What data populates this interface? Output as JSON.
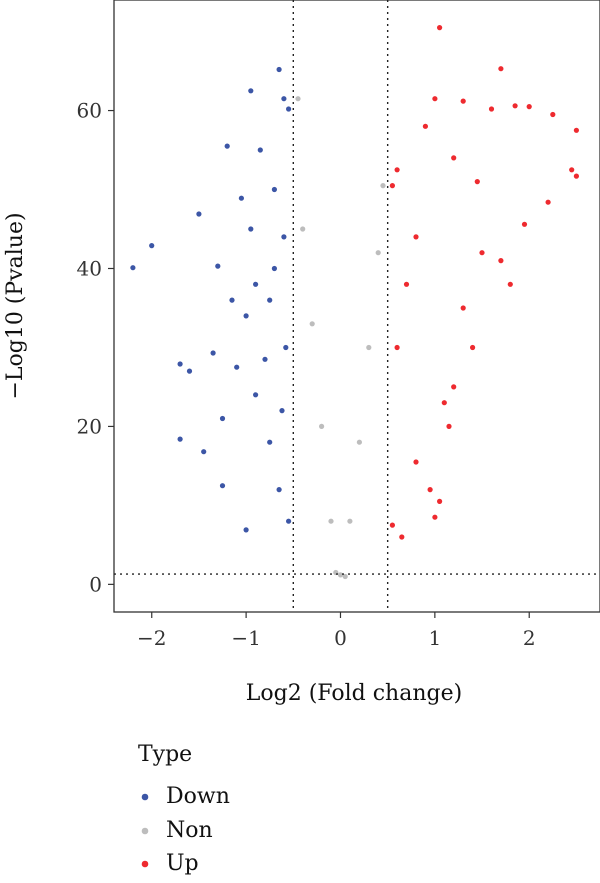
{
  "chart_data": {
    "type": "scatter",
    "xlabel": "Log2 (Fold change)",
    "ylabel": "−Log10 (Pvalue)",
    "xlim": [
      -2.4,
      2.75
    ],
    "ylim": [
      -3.5,
      74
    ],
    "xticks": [
      -2,
      -1,
      0,
      1,
      2
    ],
    "xtick_labels": [
      "−2",
      "−1",
      "0",
      "1",
      "2"
    ],
    "yticks": [
      0,
      20,
      40,
      60
    ],
    "ytick_labels": [
      "0",
      "20",
      "40",
      "60"
    ],
    "grid": false,
    "thresholds": {
      "log2fc": [
        -0.5,
        0.5
      ],
      "neglog10p": 1.3
    },
    "legend": {
      "title": "Type",
      "position": "bottom-left",
      "items": [
        {
          "label": "Down",
          "color": "#3C56A6"
        },
        {
          "label": "Non",
          "color": "#BDBDBD"
        },
        {
          "label": "Up",
          "color": "#EE2A2F"
        }
      ]
    },
    "series": [
      {
        "name": "Down",
        "color": "#3C56A6",
        "points": [
          [
            -2.2,
            40.1
          ],
          [
            -2.0,
            42.9
          ],
          [
            -1.7,
            27.9
          ],
          [
            -1.7,
            18.4
          ],
          [
            -1.6,
            27.0
          ],
          [
            -1.5,
            46.9
          ],
          [
            -1.45,
            16.8
          ],
          [
            -1.35,
            29.3
          ],
          [
            -1.3,
            40.3
          ],
          [
            -1.25,
            21.0
          ],
          [
            -1.25,
            12.5
          ],
          [
            -1.2,
            55.5
          ],
          [
            -1.1,
            27.5
          ],
          [
            -1.05,
            48.9
          ],
          [
            -1.0,
            6.9
          ],
          [
            -0.95,
            62.5
          ],
          [
            -0.9,
            38.0
          ],
          [
            -0.8,
            28.5
          ],
          [
            -0.75,
            36.0
          ],
          [
            -0.65,
            65.2
          ],
          [
            -0.6,
            61.5
          ],
          [
            -0.55,
            60.2
          ],
          [
            -0.85,
            55.0
          ],
          [
            -0.7,
            50.0
          ],
          [
            -0.6,
            44.0
          ],
          [
            -1.0,
            34.0
          ],
          [
            -0.9,
            24.0
          ],
          [
            -0.75,
            18.0
          ],
          [
            -0.65,
            12.0
          ],
          [
            -0.55,
            8.0
          ],
          [
            -0.58,
            30.0
          ],
          [
            -0.62,
            22.0
          ],
          [
            -0.7,
            40.0
          ],
          [
            -0.95,
            45.0
          ],
          [
            -1.15,
            36.0
          ]
        ]
      },
      {
        "name": "Non",
        "color": "#BDBDBD",
        "points": [
          [
            0.0,
            1.2
          ],
          [
            0.05,
            1.0
          ],
          [
            -0.05,
            1.5
          ],
          [
            -0.45,
            61.5
          ],
          [
            0.45,
            50.5
          ],
          [
            -0.3,
            33.0
          ],
          [
            0.3,
            30.0
          ],
          [
            -0.2,
            20.0
          ],
          [
            0.2,
            18.0
          ],
          [
            -0.1,
            8.0
          ],
          [
            0.1,
            8.0
          ],
          [
            -0.4,
            45.0
          ],
          [
            0.4,
            42.0
          ]
        ]
      },
      {
        "name": "Up",
        "color": "#EE2A2F",
        "points": [
          [
            1.05,
            70.5
          ],
          [
            1.7,
            65.3
          ],
          [
            2.5,
            57.5
          ],
          [
            2.45,
            52.5
          ],
          [
            2.5,
            51.7
          ],
          [
            2.2,
            48.4
          ],
          [
            1.95,
            45.6
          ],
          [
            2.0,
            60.5
          ],
          [
            2.25,
            59.5
          ],
          [
            1.85,
            60.6
          ],
          [
            1.6,
            60.2
          ],
          [
            1.3,
            61.2
          ],
          [
            1.0,
            61.5
          ],
          [
            0.9,
            58.0
          ],
          [
            0.6,
            52.5
          ],
          [
            0.55,
            50.5
          ],
          [
            1.1,
            23.0
          ],
          [
            1.15,
            20.0
          ],
          [
            1.2,
            25.0
          ],
          [
            1.05,
            10.5
          ],
          [
            1.0,
            8.5
          ],
          [
            0.95,
            12.0
          ],
          [
            0.8,
            15.5
          ],
          [
            0.65,
            6.0
          ],
          [
            0.55,
            7.5
          ],
          [
            0.6,
            30.0
          ],
          [
            0.7,
            38.0
          ],
          [
            0.8,
            44.0
          ],
          [
            1.3,
            35.0
          ],
          [
            1.5,
            42.0
          ],
          [
            1.4,
            30.0
          ],
          [
            1.7,
            41.0
          ],
          [
            1.8,
            38.0
          ],
          [
            1.45,
            51.0
          ],
          [
            1.2,
            54.0
          ]
        ]
      }
    ]
  }
}
